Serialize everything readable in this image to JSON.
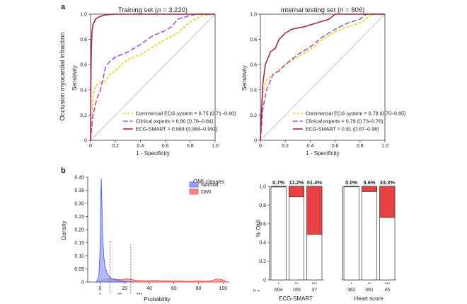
{
  "panel_labels": {
    "a": "a",
    "b": "b"
  },
  "colors": {
    "commercial": "#e8d31f",
    "experts": "#a64fd9",
    "smart": "#a8234a",
    "normal": "#4d5be0",
    "omi": "#ee4b4b",
    "omi_fill": "#f28a8a",
    "normal_fill": "#9aa3f2",
    "bar_red": "#e84141"
  },
  "shared": {
    "ylabel_outer": "Occlusion myocardial infraction"
  },
  "chart_data": [
    {
      "id": "roc-train",
      "type": "line",
      "title": "Training set (n = 3,220)",
      "title_prefix": "Training set (",
      "title_n": "n",
      "title_suffix": " = 3,220)",
      "xlabel": "1 - Specificity",
      "ylabel": "Sensitivity",
      "xlim": [
        0,
        1
      ],
      "ylim": [
        0,
        1
      ],
      "ticks": [
        "0",
        "0.2",
        "0.4",
        "0.6",
        "0.8",
        "1.0"
      ],
      "series": [
        {
          "name": "Commercial ECG system",
          "legend": "Commercial ECG system = 0.75 (0.71–0.80)",
          "color_key": "commercial",
          "dash": "4,2",
          "points": [
            [
              0,
              0
            ],
            [
              0.01,
              0.15
            ],
            [
              0.02,
              0.35
            ],
            [
              0.04,
              0.43
            ],
            [
              0.08,
              0.46
            ],
            [
              0.12,
              0.47
            ],
            [
              0.15,
              0.52
            ],
            [
              0.2,
              0.55
            ],
            [
              0.25,
              0.6
            ],
            [
              0.3,
              0.64
            ],
            [
              0.4,
              0.68
            ],
            [
              0.5,
              0.74
            ],
            [
              0.6,
              0.8
            ],
            [
              0.7,
              0.85
            ],
            [
              0.8,
              0.94
            ],
            [
              0.9,
              0.99
            ],
            [
              1.0,
              1.0
            ]
          ]
        },
        {
          "name": "Clinical experts",
          "legend": "Clinical experts = 0.80 (0.76–0.84)",
          "color_key": "experts",
          "dash": "7,3",
          "points": [
            [
              0,
              0
            ],
            [
              0.02,
              0.2
            ],
            [
              0.05,
              0.33
            ],
            [
              0.08,
              0.4
            ],
            [
              0.12,
              0.58
            ],
            [
              0.15,
              0.62
            ],
            [
              0.2,
              0.66
            ],
            [
              0.3,
              0.7
            ],
            [
              0.4,
              0.76
            ],
            [
              0.5,
              0.83
            ],
            [
              0.6,
              0.87
            ],
            [
              0.65,
              0.9
            ],
            [
              0.7,
              0.96
            ],
            [
              0.8,
              0.99
            ],
            [
              0.85,
              1.0
            ],
            [
              1.0,
              1.0
            ]
          ]
        },
        {
          "name": "ECG-SMART",
          "legend": "ECG-SMART = 0.988 (0.984–0.992)",
          "color_key": "smart",
          "dash": "",
          "points": [
            [
              0,
              0
            ],
            [
              0.003,
              0.5
            ],
            [
              0.006,
              0.72
            ],
            [
              0.012,
              0.87
            ],
            [
              0.02,
              0.92
            ],
            [
              0.04,
              0.96
            ],
            [
              0.07,
              0.98
            ],
            [
              0.12,
              0.995
            ],
            [
              0.2,
              1.0
            ],
            [
              1.0,
              1.0
            ]
          ]
        }
      ]
    },
    {
      "id": "roc-test",
      "type": "line",
      "title": "Internal testing set (n = 806)",
      "title_prefix": "Internal testing set (",
      "title_n": "n",
      "title_suffix": " = 806)",
      "xlabel": "1 - Specificity",
      "ylabel": "Sensitivity",
      "xlim": [
        0,
        1
      ],
      "ylim": [
        0,
        1
      ],
      "ticks": [
        "0",
        "0.2",
        "0.4",
        "0.6",
        "0.8",
        "1.0"
      ],
      "series": [
        {
          "name": "Commercial ECG system",
          "legend": "Commercial ECG system = 0.78 (0.70–0.85)",
          "color_key": "commercial",
          "dash": "4,2",
          "points": [
            [
              0,
              0
            ],
            [
              0.01,
              0.2
            ],
            [
              0.02,
              0.38
            ],
            [
              0.05,
              0.48
            ],
            [
              0.1,
              0.52
            ],
            [
              0.15,
              0.56
            ],
            [
              0.2,
              0.6
            ],
            [
              0.3,
              0.66
            ],
            [
              0.4,
              0.72
            ],
            [
              0.5,
              0.8
            ],
            [
              0.6,
              0.86
            ],
            [
              0.7,
              0.9
            ],
            [
              0.8,
              0.93
            ],
            [
              0.9,
              1.0
            ],
            [
              1.0,
              1.0
            ]
          ]
        },
        {
          "name": "Clinical experts",
          "legend": "Clinical experts = 0.79 (0.73–0.76)",
          "color_key": "experts",
          "dash": "7,3",
          "points": [
            [
              0,
              0
            ],
            [
              0.02,
              0.25
            ],
            [
              0.05,
              0.4
            ],
            [
              0.1,
              0.52
            ],
            [
              0.15,
              0.55
            ],
            [
              0.2,
              0.6
            ],
            [
              0.3,
              0.68
            ],
            [
              0.4,
              0.74
            ],
            [
              0.5,
              0.82
            ],
            [
              0.6,
              0.88
            ],
            [
              0.7,
              0.93
            ],
            [
              0.8,
              0.96
            ],
            [
              0.85,
              1.0
            ],
            [
              1.0,
              1.0
            ]
          ]
        },
        {
          "name": "ECG-SMART",
          "legend": "ECG-SMART = 0.91 (0.87–0.96)",
          "color_key": "smart",
          "dash": "",
          "points": [
            [
              0,
              0
            ],
            [
              0.01,
              0.25
            ],
            [
              0.02,
              0.45
            ],
            [
              0.04,
              0.6
            ],
            [
              0.08,
              0.7
            ],
            [
              0.12,
              0.73
            ],
            [
              0.15,
              0.8
            ],
            [
              0.2,
              0.85
            ],
            [
              0.25,
              0.88
            ],
            [
              0.35,
              0.9
            ],
            [
              0.45,
              0.93
            ],
            [
              0.55,
              0.96
            ],
            [
              0.6,
              1.0
            ],
            [
              1.0,
              1.0
            ]
          ]
        }
      ]
    },
    {
      "id": "density",
      "type": "area",
      "xlabel": "Probability",
      "ylabel": "Density",
      "xlim": [
        -10,
        105
      ],
      "ylim": [
        0,
        0.4
      ],
      "yticks": [
        "0",
        "0.05",
        "0.10",
        "0.15",
        "0.20",
        "0.25",
        "0.30",
        "0.35",
        "0.40"
      ],
      "xticks": [
        "0",
        "20",
        "40",
        "60",
        "80",
        "100"
      ],
      "legend_title": "OMI classes",
      "thresholds": [
        8,
        25
      ],
      "region_labels": [
        "*",
        "**",
        "***"
      ],
      "series": [
        {
          "name": "Normal",
          "color_key": "normal",
          "points": [
            [
              -3,
              0
            ],
            [
              -1,
              0.02
            ],
            [
              0,
              0.12
            ],
            [
              0.5,
              0.28
            ],
            [
              1,
              0.395
            ],
            [
              1.5,
              0.3
            ],
            [
              2,
              0.18
            ],
            [
              3,
              0.1
            ],
            [
              4,
              0.06
            ],
            [
              6,
              0.03
            ],
            [
              8,
              0.018
            ],
            [
              10,
              0.012
            ],
            [
              14,
              0.006
            ],
            [
              18,
              0.003
            ],
            [
              22,
              0.001
            ],
            [
              28,
              0
            ]
          ]
        },
        {
          "name": "OMI",
          "color_key": "omi",
          "points": [
            [
              -3,
              0
            ],
            [
              0,
              0.004
            ],
            [
              4,
              0.012
            ],
            [
              8,
              0.013
            ],
            [
              12,
              0.011
            ],
            [
              18,
              0.008
            ],
            [
              22,
              0.013
            ],
            [
              26,
              0.009
            ],
            [
              30,
              0.006
            ],
            [
              35,
              0.005
            ],
            [
              40,
              0.005
            ],
            [
              45,
              0.006
            ],
            [
              50,
              0.005
            ],
            [
              55,
              0.004
            ],
            [
              60,
              0.004
            ],
            [
              65,
              0.004
            ],
            [
              70,
              0.003
            ],
            [
              75,
              0.003
            ],
            [
              80,
              0.004
            ],
            [
              85,
              0.003
            ],
            [
              90,
              0.004
            ],
            [
              95,
              0.012
            ],
            [
              100,
              0.008
            ],
            [
              103,
              0
            ]
          ]
        }
      ]
    },
    {
      "id": "bars-smart",
      "type": "bar",
      "xlabel": "ECG-SMART",
      "ylabel": "% OMI",
      "ylim": [
        0,
        1
      ],
      "yticks": [
        "0",
        "0.2",
        "0.4",
        "0.6",
        "0.8",
        "1.0"
      ],
      "categories": [
        "*",
        "**",
        "***"
      ],
      "n_label": "n =",
      "n": [
        "604",
        "165",
        "37"
      ],
      "values": [
        0.007,
        0.112,
        0.514
      ],
      "labels": [
        "0.7%",
        "11.2%",
        "51.4%"
      ]
    },
    {
      "id": "bars-heart",
      "type": "bar",
      "xlabel": "Heart score",
      "ylabel": "",
      "ylim": [
        0,
        1
      ],
      "categories": [
        "*",
        "**",
        "***"
      ],
      "n": [
        "362",
        "391",
        "45"
      ],
      "values": [
        0.0,
        0.056,
        0.333
      ],
      "labels": [
        "0.0%",
        "5.6%",
        "33.3%"
      ]
    }
  ]
}
